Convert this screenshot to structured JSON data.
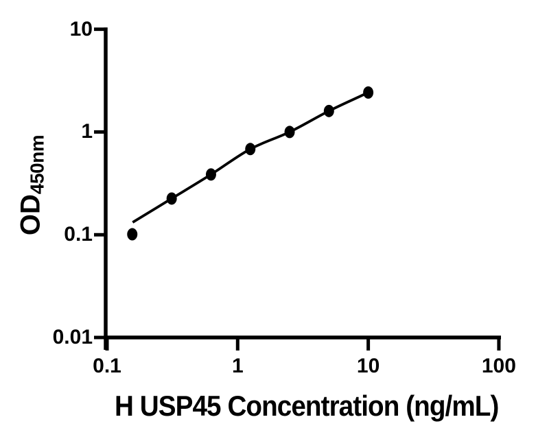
{
  "figure": {
    "background_color": "#ffffff"
  },
  "colors": {
    "axis": "#000000",
    "text": "#000000",
    "marker": "#000000",
    "curve": "#000000"
  },
  "chart_data": {
    "type": "scatter",
    "subtype": "standard-curve-log-log",
    "xlabel": "H USP45 Concentration (ng/mL)",
    "ylabel": "OD450nm",
    "ylabel_main": "OD",
    "ylabel_sub": "450nm",
    "xscale": "log",
    "yscale": "log",
    "xlim": [
      0.1,
      100
    ],
    "ylim": [
      0.01,
      10
    ],
    "grid": false,
    "legend": false,
    "x_ticks": [
      {
        "v": 0.1,
        "label": "0.1"
      },
      {
        "v": 1,
        "label": "1"
      },
      {
        "v": 10,
        "label": "10"
      },
      {
        "v": 100,
        "label": "100"
      }
    ],
    "y_ticks": [
      {
        "v": 10,
        "label": "10"
      },
      {
        "v": 1,
        "label": "1"
      },
      {
        "v": 0.1,
        "label": "0.1"
      },
      {
        "v": 0.01,
        "label": "0.01"
      }
    ],
    "series": [
      {
        "marker": "filled-black-ellipse",
        "x": [
          0.156,
          0.3125,
          0.625,
          1.25,
          2.5,
          5,
          10
        ],
        "y": [
          0.101,
          0.225,
          0.386,
          0.682,
          1.0,
          1.6,
          2.42
        ]
      }
    ],
    "fit_curve_anchors": [
      [
        0.157,
        0.132
      ],
      [
        0.3125,
        0.225
      ],
      [
        0.625,
        0.386
      ],
      [
        1.25,
        0.682
      ],
      [
        2.5,
        1.0
      ],
      [
        5,
        1.6
      ],
      [
        10,
        2.42
      ]
    ]
  }
}
